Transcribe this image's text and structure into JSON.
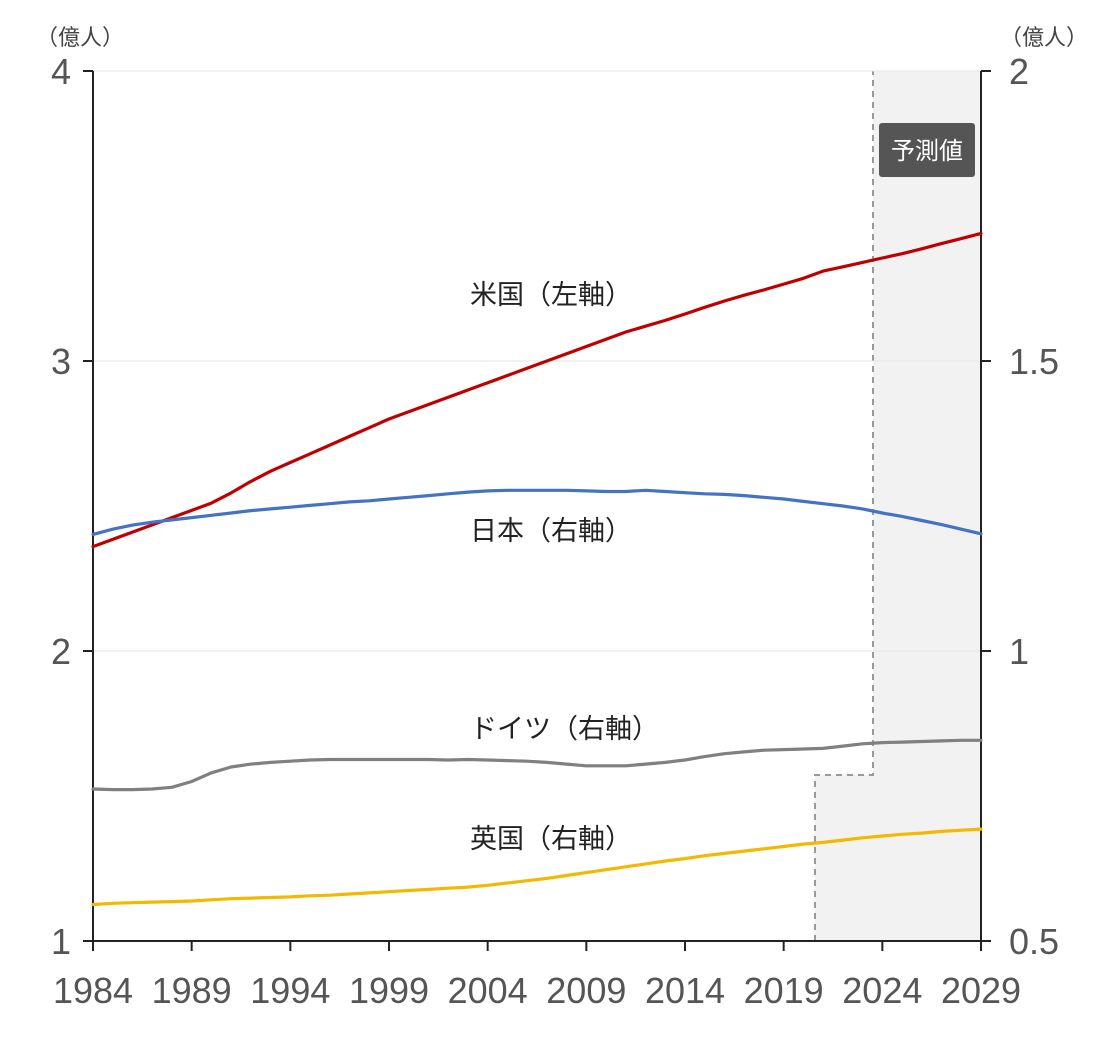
{
  "chart_data": {
    "type": "line",
    "x": [
      1984,
      1985,
      1986,
      1987,
      1988,
      1989,
      1990,
      1991,
      1992,
      1993,
      1994,
      1995,
      1996,
      1997,
      1998,
      1999,
      2000,
      2001,
      2002,
      2003,
      2004,
      2005,
      2006,
      2007,
      2008,
      2009,
      2010,
      2011,
      2012,
      2013,
      2014,
      2015,
      2016,
      2017,
      2018,
      2019,
      2020,
      2021,
      2022,
      2023,
      2024,
      2025,
      2026,
      2027,
      2028,
      2029
    ],
    "x_ticks": [
      "1984",
      "1989",
      "1994",
      "1999",
      "2004",
      "2009",
      "2014",
      "2019",
      "2024",
      "2029"
    ],
    "left_axis": {
      "unit_label": "（億人）",
      "ylim": [
        1,
        4
      ],
      "ticks": [
        "1",
        "2",
        "3",
        "4"
      ]
    },
    "right_axis": {
      "unit_label": "（億人）",
      "ylim": [
        0.5,
        2
      ],
      "ticks": [
        "0.5",
        "1",
        "1.5",
        "2"
      ]
    },
    "forecast": {
      "label": "予測値",
      "start_year": 2024,
      "color": "#f2f2f2"
    },
    "series": [
      {
        "name": "米国（左軸）",
        "axis": "left",
        "color": "#c00000",
        "values": [
          2.36,
          2.385,
          2.41,
          2.435,
          2.46,
          2.485,
          2.51,
          2.545,
          2.585,
          2.62,
          2.65,
          2.68,
          2.71,
          2.74,
          2.77,
          2.8,
          2.825,
          2.85,
          2.875,
          2.9,
          2.925,
          2.95,
          2.975,
          3.0,
          3.025,
          3.05,
          3.075,
          3.1,
          3.12,
          3.14,
          3.162,
          3.185,
          3.207,
          3.227,
          3.245,
          3.265,
          3.285,
          3.31,
          3.325,
          3.34,
          3.355,
          3.37,
          3.387,
          3.405,
          3.422,
          3.44
        ]
      },
      {
        "name": "日本（右軸）",
        "axis": "right",
        "color": "#4472c4",
        "values": [
          1.201,
          1.21,
          1.217,
          1.222,
          1.226,
          1.23,
          1.234,
          1.238,
          1.242,
          1.245,
          1.248,
          1.251,
          1.254,
          1.257,
          1.259,
          1.262,
          1.265,
          1.268,
          1.271,
          1.274,
          1.276,
          1.277,
          1.277,
          1.277,
          1.277,
          1.276,
          1.275,
          1.275,
          1.277,
          1.275,
          1.273,
          1.271,
          1.27,
          1.268,
          1.265,
          1.262,
          1.258,
          1.254,
          1.25,
          1.245,
          1.238,
          1.232,
          1.225,
          1.218,
          1.21,
          1.202
        ]
      },
      {
        "name": "ドイツ（右軸）",
        "axis": "right",
        "color": "#808080",
        "values": [
          0.762,
          0.761,
          0.761,
          0.762,
          0.765,
          0.775,
          0.79,
          0.8,
          0.805,
          0.808,
          0.81,
          0.812,
          0.813,
          0.813,
          0.813,
          0.813,
          0.813,
          0.813,
          0.812,
          0.813,
          0.812,
          0.811,
          0.81,
          0.808,
          0.805,
          0.802,
          0.802,
          0.802,
          0.805,
          0.808,
          0.812,
          0.818,
          0.823,
          0.826,
          0.829,
          0.83,
          0.831,
          0.832,
          0.836,
          0.84,
          0.842,
          0.843,
          0.844,
          0.845,
          0.846,
          0.846
        ]
      },
      {
        "name": "英国（右軸）",
        "axis": "right",
        "color": "#f4b800",
        "values": [
          0.563,
          0.565,
          0.566,
          0.567,
          0.568,
          0.569,
          0.571,
          0.573,
          0.574,
          0.575,
          0.576,
          0.578,
          0.579,
          0.581,
          0.583,
          0.585,
          0.587,
          0.589,
          0.591,
          0.593,
          0.596,
          0.6,
          0.604,
          0.608,
          0.613,
          0.618,
          0.623,
          0.628,
          0.633,
          0.638,
          0.642,
          0.647,
          0.651,
          0.655,
          0.659,
          0.663,
          0.667,
          0.67,
          0.674,
          0.678,
          0.681,
          0.684,
          0.686,
          0.689,
          0.691,
          0.693
        ]
      }
    ]
  }
}
